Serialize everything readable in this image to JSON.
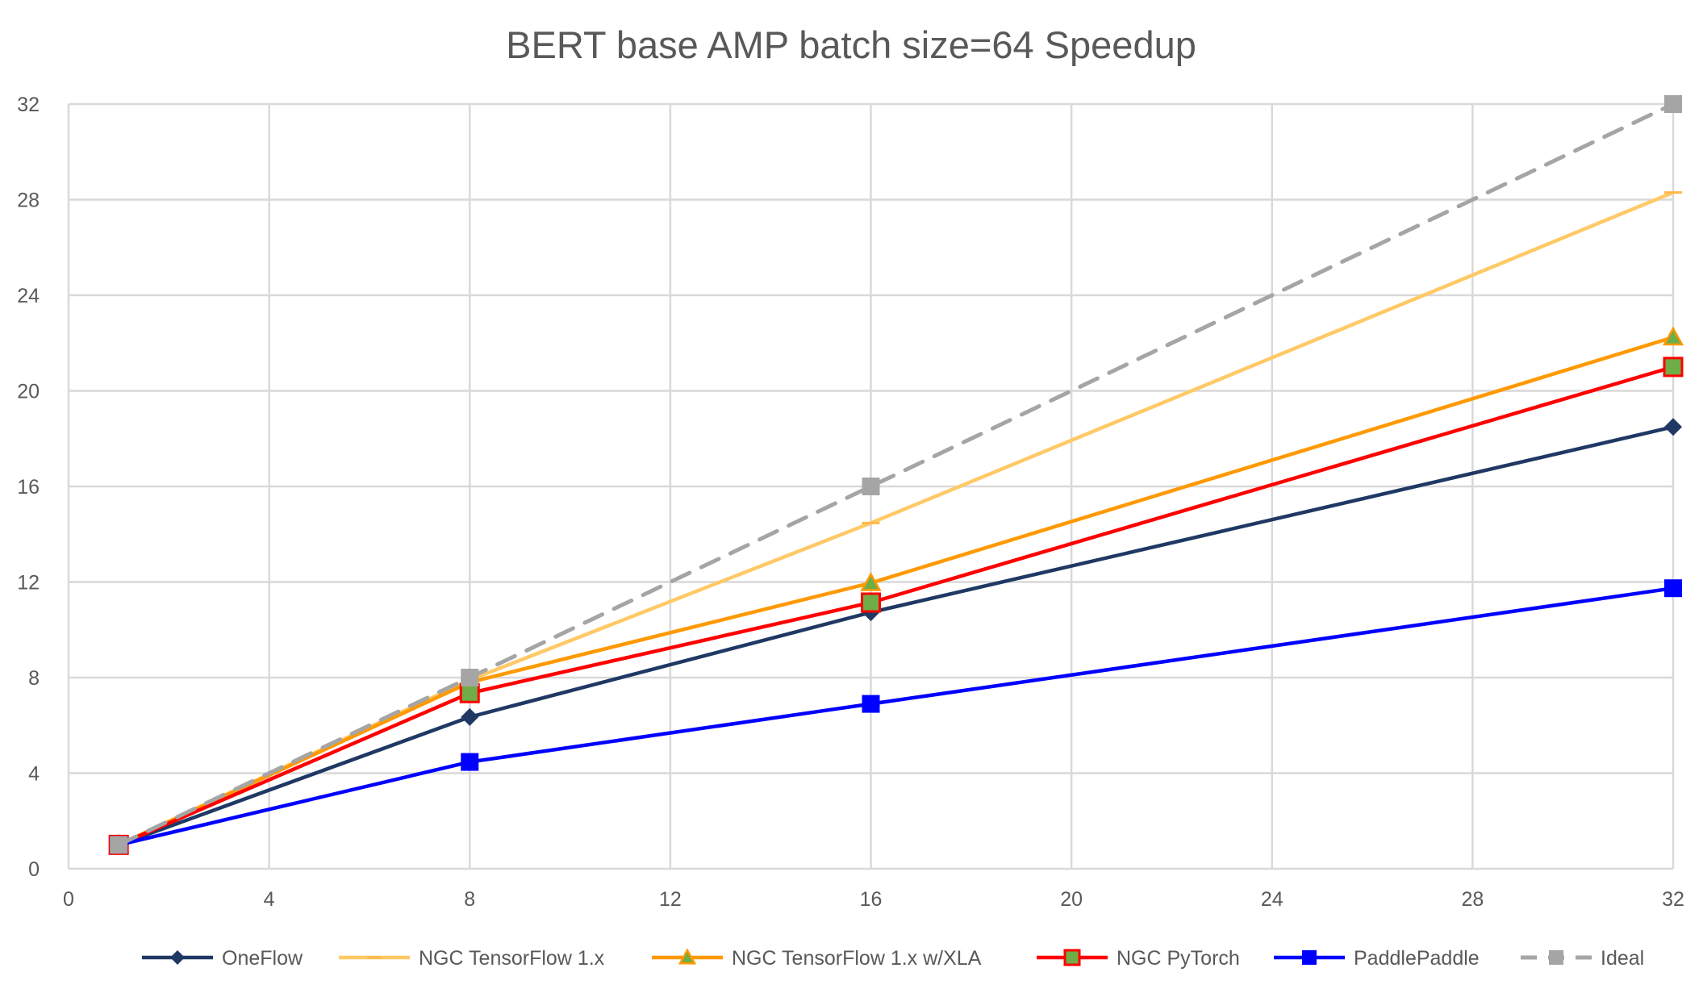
{
  "chart_data": {
    "type": "line",
    "title": "BERT base AMP batch size=64 Speedup",
    "xlabel": "",
    "ylabel": "",
    "xlim": [
      0,
      32
    ],
    "ylim": [
      0,
      32
    ],
    "x_ticks": [
      "0",
      "4",
      "8",
      "12",
      "16",
      "20",
      "24",
      "28",
      "32"
    ],
    "y_ticks": [
      "0",
      "4",
      "8",
      "12",
      "16",
      "20",
      "24",
      "28",
      "32"
    ],
    "grid": true,
    "legend_position": "bottom",
    "x": [
      1,
      8,
      16,
      32
    ],
    "series": [
      {
        "name": "OneFlow",
        "values": [
          1,
          6.35,
          10.73,
          18.49
        ],
        "color": "#1f3864",
        "marker": "diamond",
        "dash": false
      },
      {
        "name": "NGC TensorFlow 1.x",
        "values": [
          1,
          7.9,
          14.47,
          28.3
        ],
        "color": "#ffc966",
        "marker": "dash",
        "dash": false
      },
      {
        "name": "NGC TensorFlow 1.x w/XLA",
        "values": [
          1,
          7.8,
          11.96,
          22.24
        ],
        "color": "#ff9900",
        "marker": "triangle",
        "marker_fill": "#70ad47",
        "dash": false
      },
      {
        "name": "NGC PyTorch",
        "values": [
          1,
          7.35,
          11.14,
          21.0
        ],
        "color": "#ff0000",
        "marker": "square",
        "marker_fill": "#70ad47",
        "dash": false
      },
      {
        "name": "PaddlePaddle",
        "values": [
          1,
          4.47,
          6.9,
          11.74
        ],
        "color": "#0000ff",
        "marker": "square",
        "marker_fill": "#0000ff",
        "dash": false
      },
      {
        "name": "Ideal",
        "values": [
          1,
          8,
          16,
          32
        ],
        "color": "#a5a5a5",
        "marker": "square",
        "marker_fill": "#a5a5a5",
        "dash": true
      }
    ]
  }
}
